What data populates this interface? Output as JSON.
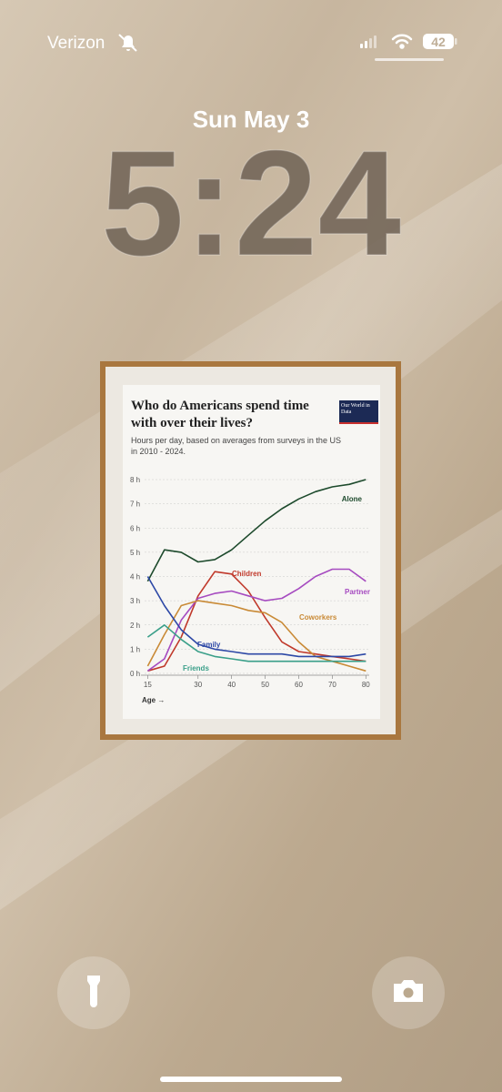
{
  "status_bar": {
    "carrier": "Verizon",
    "battery": 42
  },
  "lock_screen": {
    "date": "Sun May 3",
    "time": "5:24"
  },
  "chart_data": {
    "type": "line",
    "title": "Who do Americans spend time with over their lives?",
    "subtitle": "Hours per day, based on averages from surveys in the US in 2010 - 2024.",
    "source_logo": "Our World in Data",
    "x_label": "Age →",
    "x": [
      15,
      20,
      25,
      30,
      35,
      40,
      45,
      50,
      55,
      60,
      65,
      70,
      75,
      80
    ],
    "series": [
      {
        "name": "Alone",
        "color": "#1d4a2c",
        "values": [
          3.8,
          5.1,
          5.0,
          4.6,
          4.7,
          5.1,
          5.7,
          6.3,
          6.8,
          7.2,
          7.5,
          7.7,
          7.8,
          8.0
        ]
      },
      {
        "name": "Children",
        "color": "#c0392b",
        "values": [
          0.1,
          0.3,
          1.5,
          3.2,
          4.2,
          4.1,
          3.4,
          2.3,
          1.3,
          0.9,
          0.8,
          0.7,
          0.6,
          0.5
        ]
      },
      {
        "name": "Partner",
        "color": "#a64bc0",
        "values": [
          0.1,
          0.6,
          2.2,
          3.1,
          3.3,
          3.4,
          3.2,
          3.0,
          3.1,
          3.5,
          4.0,
          4.3,
          4.3,
          3.8
        ]
      },
      {
        "name": "Coworkers",
        "color": "#c98a36",
        "values": [
          0.3,
          1.6,
          2.8,
          3.0,
          2.9,
          2.8,
          2.6,
          2.5,
          2.1,
          1.3,
          0.7,
          0.5,
          0.3,
          0.1
        ]
      },
      {
        "name": "Family",
        "color": "#2d48a6",
        "values": [
          4.0,
          2.8,
          1.8,
          1.2,
          1.0,
          0.9,
          0.8,
          0.8,
          0.8,
          0.7,
          0.7,
          0.7,
          0.7,
          0.8
        ]
      },
      {
        "name": "Friends",
        "color": "#3a9f89",
        "values": [
          1.5,
          2.0,
          1.4,
          0.9,
          0.7,
          0.6,
          0.5,
          0.5,
          0.5,
          0.5,
          0.5,
          0.5,
          0.5,
          0.5
        ]
      }
    ],
    "xlim": [
      13,
      81
    ],
    "xticks": [
      15,
      30,
      40,
      50,
      60,
      70,
      80
    ],
    "ylim": [
      0,
      8
    ],
    "yticks": [
      {
        "value": 0,
        "label": "0 h"
      },
      {
        "value": 1,
        "label": "1 h"
      },
      {
        "value": 2,
        "label": "2 h"
      },
      {
        "value": 3,
        "label": "3 h"
      },
      {
        "value": 4,
        "label": "4 h"
      },
      {
        "value": 5,
        "label": "5 h"
      },
      {
        "value": 6,
        "label": "6 h"
      },
      {
        "value": 7,
        "label": "7 h"
      },
      {
        "value": 8,
        "label": "8 h"
      }
    ],
    "grid": true
  }
}
